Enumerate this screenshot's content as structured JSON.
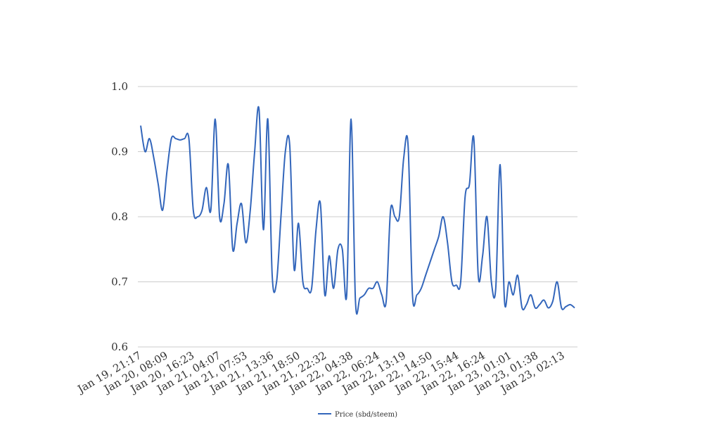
{
  "chart_data": {
    "type": "line",
    "title": "",
    "xlabel": "",
    "ylabel": "",
    "ylim": [
      0.6,
      1.0
    ],
    "y_ticks": [
      "0.6",
      "0.7",
      "0.8",
      "0.9",
      "1.0"
    ],
    "x_tick_labels": [
      "Jan 19, 21:17",
      "Jan 20, 08:09",
      "Jan 20, 16:23",
      "Jan 21, 04:07",
      "Jan 21, 07:53",
      "Jan 21, 13:36",
      "Jan 21, 18:50",
      "Jan 21, 22:32",
      "Jan 22, 04:38",
      "Jan 22, 06:24",
      "Jan 22, 13:19",
      "Jan 22, 14:50",
      "Jan 22, 15:44",
      "Jan 22, 16:24",
      "Jan 23, 01:01",
      "Jan 23, 01:38",
      "Jan 23, 02:13"
    ],
    "grid": "horizontal",
    "legend_position": "bottom",
    "series": [
      {
        "name": "Price (sbd/steem)",
        "color": "#3366bb",
        "values": [
          0.94,
          0.9,
          0.92,
          0.89,
          0.85,
          0.81,
          0.87,
          0.92,
          0.92,
          0.918,
          0.92,
          0.92,
          0.81,
          0.8,
          0.81,
          0.845,
          0.81,
          0.95,
          0.8,
          0.82,
          0.88,
          0.75,
          0.79,
          0.82,
          0.76,
          0.81,
          0.9,
          0.965,
          0.78,
          0.95,
          0.71,
          0.7,
          0.8,
          0.9,
          0.91,
          0.72,
          0.79,
          0.7,
          0.69,
          0.69,
          0.78,
          0.82,
          0.68,
          0.74,
          0.69,
          0.75,
          0.75,
          0.68,
          0.95,
          0.67,
          0.675,
          0.68,
          0.69,
          0.69,
          0.7,
          0.68,
          0.67,
          0.81,
          0.8,
          0.8,
          0.89,
          0.91,
          0.68,
          0.68,
          0.69,
          0.71,
          0.73,
          0.75,
          0.77,
          0.8,
          0.76,
          0.7,
          0.695,
          0.7,
          0.83,
          0.85,
          0.92,
          0.71,
          0.74,
          0.8,
          0.7,
          0.69,
          0.88,
          0.67,
          0.7,
          0.68,
          0.71,
          0.66,
          0.665,
          0.68,
          0.66,
          0.665,
          0.672,
          0.66,
          0.67,
          0.7,
          0.66,
          0.662,
          0.665,
          0.66
        ]
      }
    ]
  }
}
